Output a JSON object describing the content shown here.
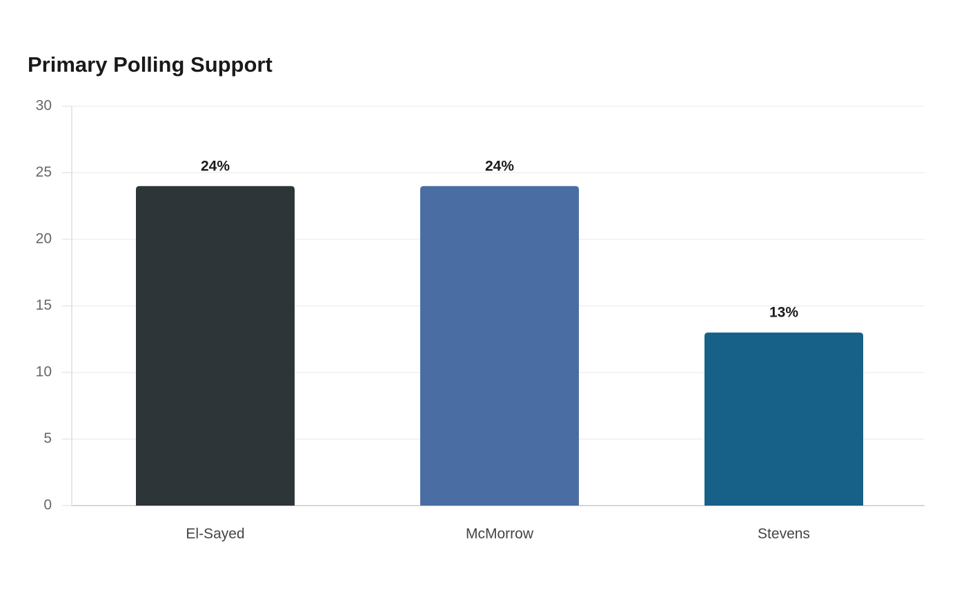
{
  "chart_data": {
    "type": "bar",
    "title": "Primary Polling Support",
    "categories": [
      "El-Sayed",
      "McMorrow",
      "Stevens"
    ],
    "values": [
      24,
      24,
      13
    ],
    "value_labels": [
      "24%",
      "24%",
      "13%"
    ],
    "colors": [
      "#2e3538",
      "#4a6ea3",
      "#176088"
    ],
    "ylim": [
      0,
      30
    ],
    "yticks": [
      0,
      5,
      10,
      15,
      20,
      25,
      30
    ],
    "grid": true
  }
}
